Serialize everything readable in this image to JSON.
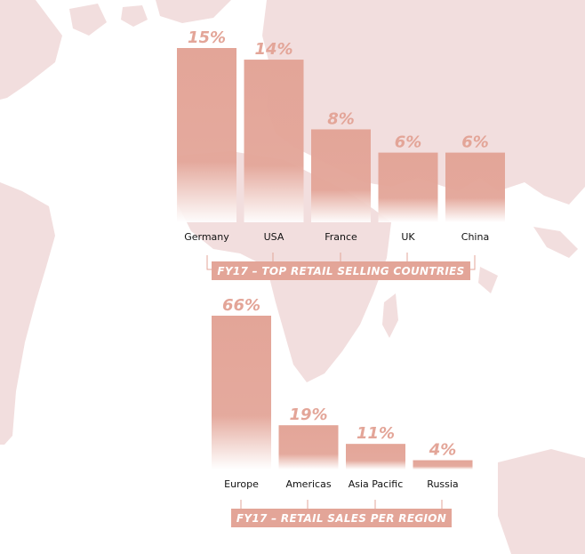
{
  "colors": {
    "bar": "#e3a598",
    "bar_fade": "#ffffff",
    "value_text": "#e3a598",
    "title_box": "#e3a598",
    "bracket": "#e3a598",
    "map": "#f2dede"
  },
  "background": {
    "map_icon": "world-map-icon"
  },
  "chart_data": [
    {
      "type": "bar",
      "title": "FY17 – TOP RETAIL SELLING COUNTRIES",
      "categories": [
        "Germany",
        "USA",
        "France",
        "UK",
        "China"
      ],
      "values": [
        15,
        14,
        8,
        6,
        6
      ],
      "value_labels": [
        "15%",
        "14%",
        "8%",
        "6%",
        "6%"
      ],
      "unit": "%",
      "xlabel": "",
      "ylabel": "",
      "ylim": [
        0,
        15
      ],
      "grid": false,
      "legend": "none"
    },
    {
      "type": "bar",
      "title": "FY17 – RETAIL SALES PER REGION",
      "categories": [
        "Europe",
        "Americas",
        "Asia Pacific",
        "Russia"
      ],
      "values": [
        66,
        19,
        11,
        4
      ],
      "value_labels": [
        "66%",
        "19%",
        "11%",
        "4%"
      ],
      "unit": "%",
      "xlabel": "",
      "ylabel": "",
      "ylim": [
        0,
        66
      ],
      "grid": false,
      "legend": "none"
    }
  ]
}
